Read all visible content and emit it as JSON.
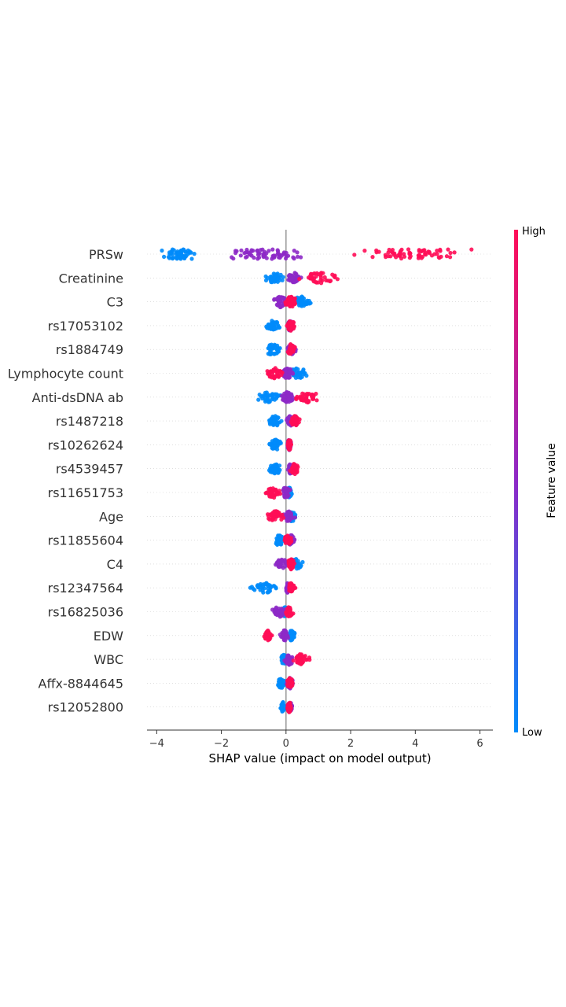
{
  "chart_data": {
    "type": "scatter",
    "subtype": "shap-beeswarm",
    "xlabel": "SHAP value (impact on model output)",
    "xlim": [
      -4.3,
      6.4
    ],
    "xticks": [
      -4,
      -2,
      0,
      2,
      4,
      6
    ],
    "xtick_labels": [
      "−4",
      "−2",
      "0",
      "2",
      "4",
      "6"
    ],
    "colorbar": {
      "title": "Feature value",
      "high_label": "High",
      "low_label": "Low",
      "high_color": "#ff0d57",
      "mid_color": "#8d29c7",
      "low_color": "#008bfb",
      "placement": "right"
    },
    "features": [
      {
        "name": "PRSw",
        "low_x": [
          -4.0,
          -2.6
        ],
        "mid_x": [
          -2.2,
          1.0
        ],
        "high_x": [
          1.9,
          5.9
        ]
      },
      {
        "name": "Creatinine",
        "low_x": [
          -0.7,
          0.0
        ],
        "mid_x": [
          0.0,
          0.5
        ],
        "high_x": [
          0.3,
          1.75
        ]
      },
      {
        "name": "C3",
        "low_x": [
          0.05,
          0.9
        ],
        "mid_x": [
          -0.45,
          0.1
        ],
        "high_x": [
          -0.1,
          0.4
        ]
      },
      {
        "name": "rs17053102",
        "low_x": [
          -0.7,
          -0.1
        ],
        "mid_x": [
          0.0,
          0.25
        ],
        "high_x": [
          0.0,
          0.3
        ]
      },
      {
        "name": "rs1884749",
        "low_x": [
          -0.8,
          -0.05
        ],
        "mid_x": [
          -0.05,
          0.35
        ],
        "high_x": [
          0.0,
          0.3
        ]
      },
      {
        "name": "Lymphocyte count",
        "low_x": [
          0.0,
          0.75
        ],
        "mid_x": [
          -0.2,
          0.3
        ],
        "high_x": [
          -0.7,
          0.0
        ]
      },
      {
        "name": "Anti-dsDNA ab",
        "low_x": [
          -1.05,
          0.0
        ],
        "mid_x": [
          -0.2,
          0.3
        ],
        "high_x": [
          0.1,
          1.2
        ]
      },
      {
        "name": "rs1487218",
        "low_x": [
          -0.6,
          -0.05
        ],
        "mid_x": [
          0.0,
          0.25
        ],
        "high_x": [
          0.1,
          0.45
        ]
      },
      {
        "name": "rs10262624",
        "low_x": [
          -0.6,
          -0.05
        ],
        "mid_x": [
          0.0,
          0.2
        ],
        "high_x": [
          0.0,
          0.2
        ]
      },
      {
        "name": "rs4539457",
        "low_x": [
          -0.6,
          -0.05
        ],
        "mid_x": [
          0.0,
          0.3
        ],
        "high_x": [
          0.1,
          0.45
        ]
      },
      {
        "name": "rs11651753",
        "low_x": [
          0.0,
          0.2
        ],
        "mid_x": [
          -0.2,
          0.2
        ],
        "high_x": [
          -0.7,
          -0.05
        ]
      },
      {
        "name": "Age",
        "low_x": [
          0.0,
          0.35
        ],
        "mid_x": [
          -0.15,
          0.3
        ],
        "high_x": [
          -0.65,
          0.0
        ]
      },
      {
        "name": "rs11855604",
        "low_x": [
          -0.45,
          0.0
        ],
        "mid_x": [
          0.0,
          0.3
        ],
        "high_x": [
          -0.1,
          0.25
        ]
      },
      {
        "name": "C4",
        "low_x": [
          0.1,
          0.55
        ],
        "mid_x": [
          -0.4,
          0.15
        ],
        "high_x": [
          0.0,
          0.3
        ]
      },
      {
        "name": "rs12347564",
        "low_x": [
          -1.15,
          -0.1
        ],
        "mid_x": [
          -0.05,
          0.15
        ],
        "high_x": [
          0.0,
          0.3
        ]
      },
      {
        "name": "rs16825036",
        "low_x": [
          -0.15,
          0.1
        ],
        "mid_x": [
          -0.5,
          0.1
        ],
        "high_x": [
          -0.05,
          0.25
        ]
      },
      {
        "name": "EDW",
        "low_x": [
          0.0,
          0.35
        ],
        "mid_x": [
          -0.2,
          0.1
        ],
        "high_x": [
          -0.7,
          -0.4
        ]
      },
      {
        "name": "WBC",
        "low_x": [
          -0.2,
          0.1
        ],
        "mid_x": [
          -0.1,
          0.3
        ],
        "high_x": [
          0.1,
          0.8
        ]
      },
      {
        "name": "Affx-8844645",
        "low_x": [
          -0.3,
          0.0
        ],
        "mid_x": [
          0.0,
          0.25
        ],
        "high_x": [
          0.0,
          0.25
        ]
      },
      {
        "name": "rs12052800",
        "low_x": [
          -0.2,
          0.0
        ],
        "mid_x": [
          0.0,
          0.25
        ],
        "high_x": [
          0.0,
          0.2
        ]
      }
    ]
  }
}
